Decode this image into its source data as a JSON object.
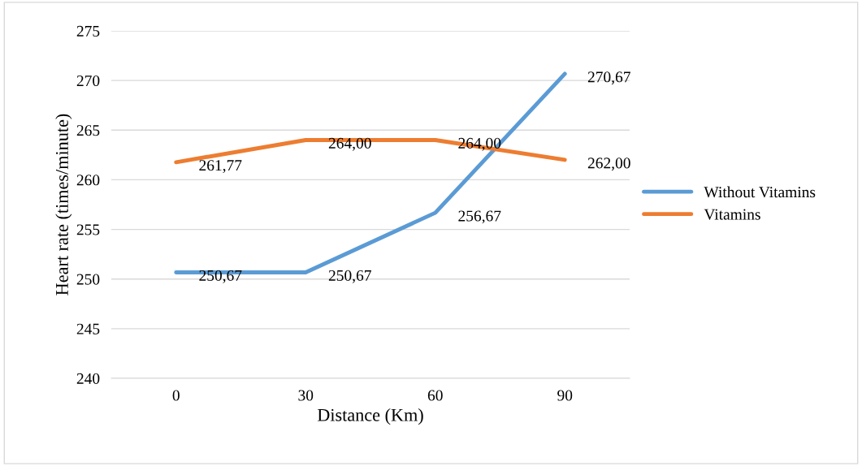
{
  "chart_data": {
    "type": "line",
    "xlabel": "Distance (Km)",
    "ylabel": "Heart rate (times/minute)",
    "categories": [
      "0",
      "30",
      "60",
      "90"
    ],
    "series": [
      {
        "name": "Without Vitamins",
        "color": "#5b9bd5",
        "values": [
          250.67,
          250.67,
          256.67,
          270.67
        ],
        "value_labels": [
          "250,67",
          "250,67",
          "256,67",
          "270,67"
        ]
      },
      {
        "name": "Vitamins",
        "color": "#ed7d31",
        "values": [
          261.77,
          264.0,
          264.0,
          262.0
        ],
        "value_labels": [
          "261,77",
          "264,00",
          "264,00",
          "262,00"
        ]
      }
    ],
    "ylim": [
      240,
      275
    ],
    "yticks": [
      240,
      245,
      250,
      255,
      260,
      265,
      270,
      275
    ],
    "grid": "y",
    "legend": "right",
    "marker": "none",
    "line_style": "solid"
  }
}
